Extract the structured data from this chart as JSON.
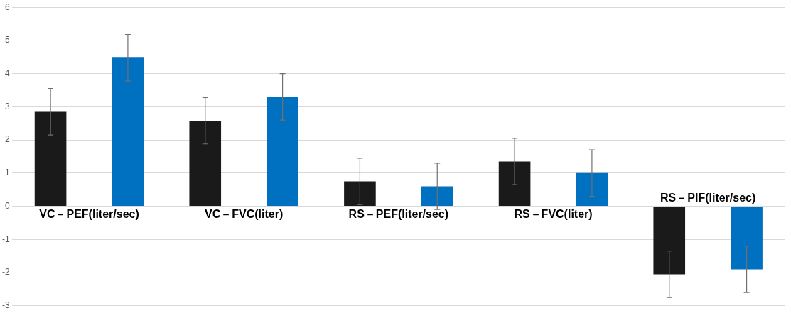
{
  "chart_data": {
    "type": "bar",
    "categories": [
      "VC－PEF(liter/sec)",
      "VC－FVC(liter)",
      "RS－PEF(liter/sec)",
      "RS－FVC(liter)",
      "RS－PIF(liter/sec)"
    ],
    "series": [
      {
        "color": "#1a1a1a",
        "values": [
          2.85,
          2.58,
          0.75,
          1.35,
          -2.05
        ],
        "errors": [
          0.7,
          0.7,
          0.7,
          0.7,
          0.7
        ]
      },
      {
        "color": "#0070c0",
        "values": [
          4.48,
          3.3,
          0.6,
          1.0,
          -1.9
        ],
        "errors": [
          0.7,
          0.7,
          0.7,
          0.7,
          0.7
        ]
      }
    ],
    "ylim": [
      -3,
      6
    ],
    "yticks": [
      -3,
      -2,
      -1,
      0,
      1,
      2,
      3,
      4,
      5,
      6
    ],
    "grid": "y",
    "legend": false
  }
}
